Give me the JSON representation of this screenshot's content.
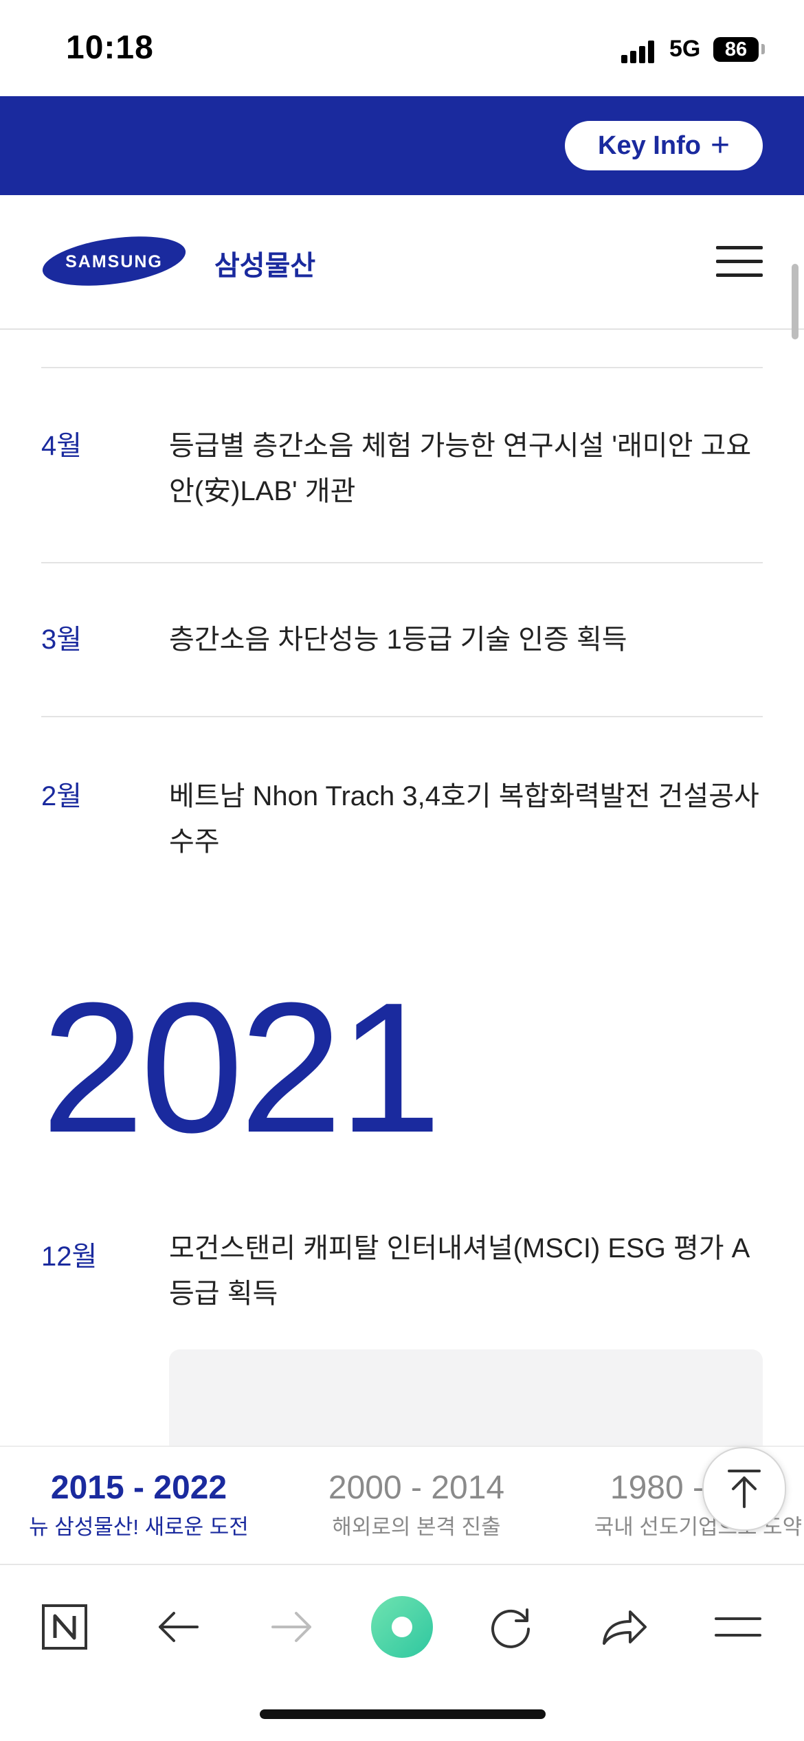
{
  "status_bar": {
    "time": "10:18",
    "network": "5G",
    "battery": "86"
  },
  "banner": {
    "key_info_label": "Key Info"
  },
  "header": {
    "logo_text": "SAMSUNG",
    "brand_name": "삼성물산"
  },
  "timeline": {
    "entries": [
      {
        "month": "4월",
        "text": "등급별 층간소음 체험 가능한 연구시설 '래미안 고요안(安)LAB' 개관"
      },
      {
        "month": "3월",
        "text": "층간소음 차단성능 1등급 기술 인증 획득"
      },
      {
        "month": "2월",
        "text": "베트남 Nhon Trach 3,4호기 복합화력발전 건설공사 수주"
      }
    ],
    "year": "2021",
    "year_entries": [
      {
        "month": "12월",
        "text": "모건스탠리 캐피탈 인터내셔널(MSCI) ESG 평가 A 등급 획득"
      }
    ]
  },
  "eras": [
    {
      "range": "2015 - 2022",
      "subtitle": "뉴 삼성물산! 새로운 도전",
      "active": true
    },
    {
      "range": "2000 - 2014",
      "subtitle": "해외로의 본격 진출",
      "active": false
    },
    {
      "range": "1980 - 1999",
      "subtitle": "국내 선도기업으로 도약",
      "active": false
    }
  ],
  "colors": {
    "brand_blue": "#1a2a9e",
    "text": "#222222",
    "muted": "#8a8a8a"
  },
  "icons": {
    "toolbar": [
      "naver-n-icon",
      "back-arrow-icon",
      "forward-arrow-icon",
      "green-circle-icon",
      "refresh-icon",
      "share-icon",
      "menu-icon"
    ]
  }
}
